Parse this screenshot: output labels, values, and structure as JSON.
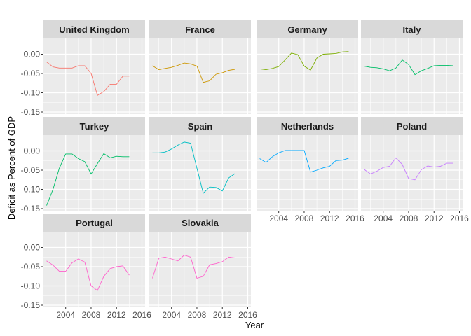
{
  "chart_data": {
    "type": "line",
    "facet_layout": "wrap-4-columns",
    "xlabel": "Year",
    "ylabel": "Deficit as Percent of GDP",
    "xlim": [
      2001,
      2016
    ],
    "ylim": [
      -0.15,
      0.03
    ],
    "x_ticks": [
      2004,
      2008,
      2012,
      2016
    ],
    "x_tick_labels": [
      "2004",
      "2008",
      "2012",
      "2016"
    ],
    "y_ticks": [
      -0.15,
      -0.1,
      -0.05,
      0.0
    ],
    "y_tick_labels": [
      "-0.15",
      "-0.10",
      "-0.05",
      "0.00"
    ],
    "legend": "none",
    "grid": true,
    "theme": {
      "panel_background": "#ebebeb",
      "strip_background": "#d9d9d9",
      "grid_color": "#ffffff"
    },
    "series": [
      {
        "name": "United Kingdom",
        "color": "#F8766D",
        "x": [
          2001,
          2002,
          2003,
          2004,
          2005,
          2006,
          2007,
          2008,
          2009,
          2010,
          2011,
          2012,
          2013,
          2014
        ],
        "y": [
          -0.02,
          -0.033,
          -0.036,
          -0.036,
          -0.036,
          -0.03,
          -0.03,
          -0.05,
          -0.107,
          -0.097,
          -0.078,
          -0.078,
          -0.057,
          -0.057
        ]
      },
      {
        "name": "France",
        "color": "#CD9600",
        "x": [
          2001,
          2002,
          2003,
          2004,
          2005,
          2006,
          2007,
          2008,
          2009,
          2010,
          2011,
          2012,
          2013,
          2014
        ],
        "y": [
          -0.03,
          -0.04,
          -0.037,
          -0.034,
          -0.029,
          -0.023,
          -0.025,
          -0.031,
          -0.073,
          -0.069,
          -0.052,
          -0.048,
          -0.042,
          -0.039
        ]
      },
      {
        "name": "Germany",
        "color": "#7CAE00",
        "x": [
          2001,
          2002,
          2003,
          2004,
          2005,
          2006,
          2007,
          2008,
          2009,
          2010,
          2011,
          2012,
          2013,
          2014,
          2015
        ],
        "y": [
          -0.038,
          -0.04,
          -0.037,
          -0.032,
          -0.015,
          0.003,
          -0.001,
          -0.031,
          -0.041,
          -0.01,
          0.0,
          0.001,
          0.002,
          0.006,
          0.007
        ]
      },
      {
        "name": "Italy",
        "color": "#00BE67",
        "x": [
          2001,
          2002,
          2003,
          2004,
          2005,
          2006,
          2007,
          2008,
          2009,
          2010,
          2011,
          2012,
          2013,
          2014,
          2015
        ],
        "y": [
          -0.031,
          -0.034,
          -0.035,
          -0.038,
          -0.043,
          -0.036,
          -0.015,
          -0.027,
          -0.053,
          -0.043,
          -0.037,
          -0.03,
          -0.029,
          -0.029,
          -0.03
        ]
      },
      {
        "name": "Turkey",
        "color": "#00BE67",
        "x": [
          2001,
          2002,
          2003,
          2004,
          2005,
          2006,
          2007,
          2008,
          2009,
          2010,
          2011,
          2012,
          2013,
          2014
        ],
        "y": [
          -0.142,
          -0.1,
          -0.045,
          -0.008,
          -0.008,
          -0.02,
          -0.028,
          -0.06,
          -0.033,
          -0.007,
          -0.018,
          -0.014,
          -0.015,
          -0.015
        ]
      },
      {
        "name": "Spain",
        "color": "#00BFC4",
        "x": [
          2001,
          2002,
          2003,
          2004,
          2005,
          2006,
          2007,
          2008,
          2009,
          2010,
          2011,
          2012,
          2013,
          2014
        ],
        "y": [
          -0.005,
          -0.005,
          -0.003,
          0.005,
          0.015,
          0.023,
          0.02,
          -0.045,
          -0.11,
          -0.094,
          -0.095,
          -0.104,
          -0.07,
          -0.059
        ]
      },
      {
        "name": "Netherlands",
        "color": "#00A9FF",
        "x": [
          2001,
          2002,
          2003,
          2004,
          2005,
          2006,
          2007,
          2008,
          2009,
          2010,
          2011,
          2012,
          2013,
          2014,
          2015
        ],
        "y": [
          -0.02,
          -0.03,
          -0.015,
          -0.005,
          0.001,
          0.001,
          0.001,
          0.001,
          -0.055,
          -0.05,
          -0.044,
          -0.04,
          -0.025,
          -0.024,
          -0.019
        ]
      },
      {
        "name": "Poland",
        "color": "#C77CFF",
        "x": [
          2001,
          2002,
          2003,
          2004,
          2005,
          2006,
          2007,
          2008,
          2009,
          2010,
          2011,
          2012,
          2013,
          2014,
          2015
        ],
        "y": [
          -0.048,
          -0.06,
          -0.053,
          -0.043,
          -0.04,
          -0.018,
          -0.035,
          -0.072,
          -0.075,
          -0.049,
          -0.039,
          -0.042,
          -0.04,
          -0.032,
          -0.032
        ]
      },
      {
        "name": "Portugal",
        "color": "#FF61CC",
        "x": [
          2001,
          2002,
          2003,
          2004,
          2005,
          2006,
          2007,
          2008,
          2009,
          2010,
          2011,
          2012,
          2013,
          2014
        ],
        "y": [
          -0.035,
          -0.046,
          -0.062,
          -0.062,
          -0.04,
          -0.03,
          -0.038,
          -0.1,
          -0.112,
          -0.075,
          -0.055,
          -0.05,
          -0.048,
          -0.072
        ]
      },
      {
        "name": "Slovakia",
        "color": "#FF61CC",
        "x": [
          2001,
          2002,
          2003,
          2004,
          2005,
          2006,
          2007,
          2008,
          2009,
          2010,
          2011,
          2012,
          2013,
          2014,
          2015
        ],
        "y": [
          -0.08,
          -0.028,
          -0.025,
          -0.03,
          -0.035,
          -0.02,
          -0.025,
          -0.08,
          -0.075,
          -0.045,
          -0.042,
          -0.037,
          -0.025,
          -0.027,
          -0.027
        ]
      }
    ]
  }
}
